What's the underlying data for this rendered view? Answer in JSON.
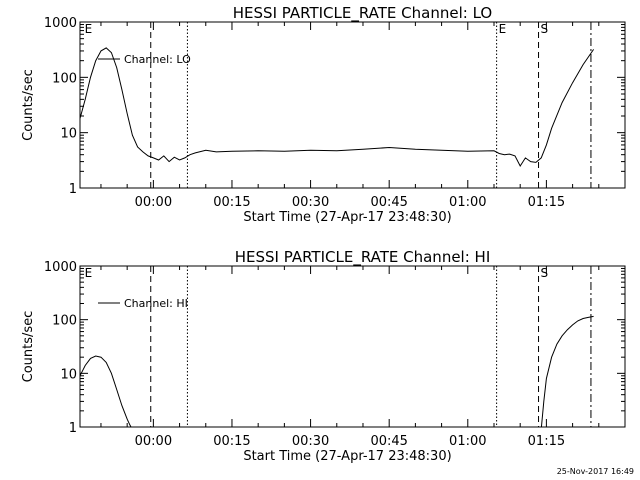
{
  "footer": {
    "timestamp": "25-Nov-2017 16:49"
  },
  "chart_data": [
    {
      "type": "line",
      "title": "HESSI PARTICLE_RATE Channel: LO",
      "xlabel": "Start Time (27-Apr-17 23:48:30)",
      "ylabel": "Counts/sec",
      "yscale": "log",
      "ylim": [
        1,
        1000
      ],
      "xlim_minutes": [
        -14,
        90
      ],
      "yticks": [
        "1",
        "10",
        "100",
        "1000"
      ],
      "xticks": [
        "00:00",
        "00:15",
        "00:30",
        "00:45",
        "01:00",
        "01:15"
      ],
      "legend": "Channel: LO",
      "markers": [
        {
          "label": "E",
          "x": -13.5,
          "style": "none"
        },
        {
          "label": "",
          "x": -0.5,
          "style": "dashed"
        },
        {
          "label": "",
          "x": 6.5,
          "style": "dotted"
        },
        {
          "label": "E",
          "x": 65.5,
          "style": "dotted"
        },
        {
          "label": "S",
          "x": 73.5,
          "style": "dashed"
        },
        {
          "label": "",
          "x": 83.5,
          "style": "dashdot"
        }
      ],
      "series": [
        {
          "x": [
            -14,
            -13,
            -12,
            -11,
            -10,
            -9,
            -8,
            -7,
            -6,
            -5,
            -4,
            -3,
            -2,
            -1,
            0,
            1,
            2,
            3,
            4,
            5,
            6,
            7,
            8,
            10,
            12,
            15,
            20,
            25,
            30,
            35,
            40,
            45,
            50,
            55,
            60,
            65,
            66,
            67,
            68,
            69,
            70,
            71,
            72,
            73,
            74,
            75,
            76,
            78,
            80,
            82,
            84
          ],
          "y": [
            18,
            40,
            100,
            200,
            300,
            340,
            280,
            150,
            60,
            22,
            9,
            5.5,
            4.5,
            3.8,
            3.5,
            3.2,
            3.8,
            3.0,
            3.6,
            3.2,
            3.5,
            4.0,
            4.3,
            4.8,
            4.5,
            4.6,
            4.7,
            4.6,
            4.8,
            4.7,
            5.0,
            5.4,
            5.0,
            4.8,
            4.6,
            4.7,
            4.2,
            4.0,
            4.1,
            3.8,
            2.5,
            3.5,
            3.0,
            2.9,
            3.5,
            6,
            12,
            35,
            80,
            170,
            320
          ]
        }
      ]
    },
    {
      "type": "line",
      "title": "HESSI PARTICLE_RATE Channel: HI",
      "xlabel": "Start Time (27-Apr-17 23:48:30)",
      "ylabel": "Counts/sec",
      "yscale": "log",
      "ylim": [
        1,
        1000
      ],
      "xlim_minutes": [
        -14,
        90
      ],
      "yticks": [
        "1",
        "10",
        "100",
        "1000"
      ],
      "xticks": [
        "00:00",
        "00:15",
        "00:30",
        "00:45",
        "01:00",
        "01:15"
      ],
      "legend": "Channel: HI",
      "markers": [
        {
          "label": "E",
          "x": -13.5,
          "style": "none"
        },
        {
          "label": "",
          "x": -0.5,
          "style": "dashed"
        },
        {
          "label": "",
          "x": 6.5,
          "style": "dotted"
        },
        {
          "label": "",
          "x": 65.5,
          "style": "dotted"
        },
        {
          "label": "S",
          "x": 73.5,
          "style": "dashed"
        },
        {
          "label": "",
          "x": 83.5,
          "style": "dashdot"
        }
      ],
      "series": [
        {
          "x": [
            -14,
            -13,
            -12,
            -11,
            -10,
            -9,
            -8,
            -7,
            -6,
            -5,
            -4.5,
            -4
          ],
          "y": [
            9,
            14,
            19,
            21,
            20,
            16,
            10,
            5,
            2.5,
            1.4,
            1.1,
            0.9
          ]
        },
        {
          "x": [
            74,
            74.5,
            75,
            76,
            77,
            78,
            79,
            80,
            81,
            82,
            83,
            84
          ],
          "y": [
            0.9,
            3,
            8,
            20,
            35,
            50,
            65,
            80,
            95,
            105,
            110,
            115
          ]
        }
      ]
    }
  ]
}
